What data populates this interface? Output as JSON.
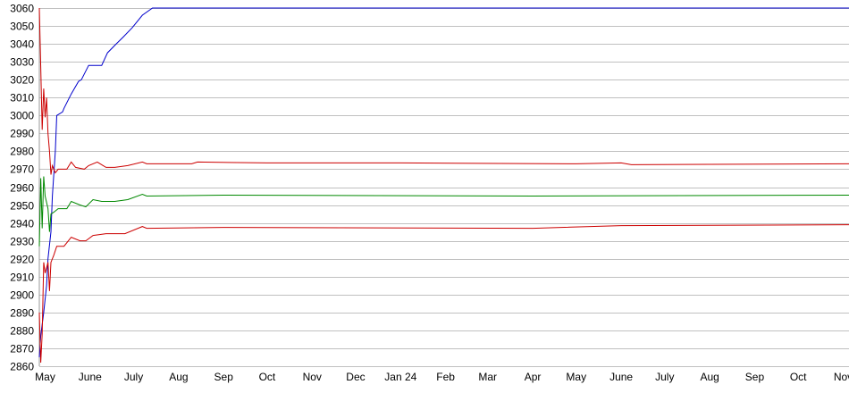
{
  "chart_data": {
    "type": "line",
    "title": "",
    "xlabel": "",
    "ylabel": "",
    "xlim": [
      "2023-04-27",
      "2024-11-05"
    ],
    "ylim": [
      2860,
      3060
    ],
    "yticks": [
      2860,
      2870,
      2880,
      2890,
      2900,
      2910,
      2920,
      2930,
      2940,
      2950,
      2960,
      2970,
      2980,
      2990,
      3000,
      3010,
      3020,
      3030,
      3040,
      3050,
      3060
    ],
    "xticks": [
      {
        "date": "2023-05-01",
        "label": "May"
      },
      {
        "date": "2023-06-01",
        "label": "June"
      },
      {
        "date": "2023-07-01",
        "label": "July"
      },
      {
        "date": "2023-08-01",
        "label": "Aug"
      },
      {
        "date": "2023-09-01",
        "label": "Sep"
      },
      {
        "date": "2023-10-01",
        "label": "Oct"
      },
      {
        "date": "2023-11-01",
        "label": "Nov"
      },
      {
        "date": "2023-12-01",
        "label": "Dec"
      },
      {
        "date": "2024-01-01",
        "label": "Jan 24"
      },
      {
        "date": "2024-02-01",
        "label": "Feb"
      },
      {
        "date": "2024-03-01",
        "label": "Mar"
      },
      {
        "date": "2024-04-01",
        "label": "Apr"
      },
      {
        "date": "2024-05-01",
        "label": "May"
      },
      {
        "date": "2024-06-01",
        "label": "June"
      },
      {
        "date": "2024-07-01",
        "label": "July"
      },
      {
        "date": "2024-08-01",
        "label": "Aug"
      },
      {
        "date": "2024-09-01",
        "label": "Sep"
      },
      {
        "date": "2024-10-01",
        "label": "Oct"
      },
      {
        "date": "2024-11-01",
        "label": "Nov"
      }
    ],
    "grid": true,
    "series": [
      {
        "color": "#0000cc",
        "points": [
          [
            "2023-04-27",
            2865
          ],
          [
            "2023-04-28",
            2877
          ],
          [
            "2023-04-30",
            2890
          ],
          [
            "2023-05-02",
            2905
          ],
          [
            "2023-05-03",
            2920
          ],
          [
            "2023-05-05",
            2935
          ],
          [
            "2023-05-06",
            2955
          ],
          [
            "2023-05-08",
            2980
          ],
          [
            "2023-05-09",
            3000
          ],
          [
            "2023-05-13",
            3002
          ],
          [
            "2023-05-14",
            3004
          ],
          [
            "2023-05-19",
            3012
          ],
          [
            "2023-05-24",
            3019
          ],
          [
            "2023-05-26",
            3020
          ],
          [
            "2023-05-31",
            3028
          ],
          [
            "2023-06-09",
            3028
          ],
          [
            "2023-06-13",
            3035
          ],
          [
            "2023-06-19",
            3040
          ],
          [
            "2023-06-24",
            3044
          ],
          [
            "2023-06-30",
            3049
          ],
          [
            "2023-07-07",
            3056
          ],
          [
            "2023-07-14",
            3060
          ],
          [
            "2024-11-05",
            3060
          ]
        ]
      },
      {
        "color": "#cc0000",
        "points": [
          [
            "2023-04-27",
            3060
          ],
          [
            "2023-04-28",
            3027
          ],
          [
            "2023-04-29",
            2992
          ],
          [
            "2023-04-30",
            3015
          ],
          [
            "2023-05-01",
            2999
          ],
          [
            "2023-05-02",
            3010
          ],
          [
            "2023-05-03",
            2990
          ],
          [
            "2023-05-04",
            2980
          ],
          [
            "2023-05-05",
            2967
          ],
          [
            "2023-05-06",
            2972
          ],
          [
            "2023-05-07",
            2970
          ],
          [
            "2023-05-08",
            2968
          ],
          [
            "2023-05-10",
            2970
          ],
          [
            "2023-05-16",
            2970
          ],
          [
            "2023-05-19",
            2974
          ],
          [
            "2023-05-22",
            2971
          ],
          [
            "2023-05-28",
            2970
          ],
          [
            "2023-05-31",
            2972
          ],
          [
            "2023-06-06",
            2974
          ],
          [
            "2023-06-10",
            2972
          ],
          [
            "2023-06-12",
            2971
          ],
          [
            "2023-06-18",
            2971
          ],
          [
            "2023-06-27",
            2972
          ],
          [
            "2023-07-07",
            2974
          ],
          [
            "2023-07-10",
            2973
          ],
          [
            "2023-08-10",
            2973
          ],
          [
            "2023-08-14",
            2974
          ],
          [
            "2023-10-01",
            2973.5
          ],
          [
            "2024-01-01",
            2973.5
          ],
          [
            "2024-05-01",
            2973
          ],
          [
            "2024-06-01",
            2973.5
          ],
          [
            "2024-06-08",
            2972.5
          ],
          [
            "2024-11-05",
            2973
          ]
        ]
      },
      {
        "color": "#008800",
        "points": [
          [
            "2023-04-27",
            2927
          ],
          [
            "2023-04-28",
            2965
          ],
          [
            "2023-04-29",
            2937
          ],
          [
            "2023-04-30",
            2966
          ],
          [
            "2023-05-01",
            2955
          ],
          [
            "2023-05-03",
            2948
          ],
          [
            "2023-05-04",
            2935
          ],
          [
            "2023-05-05",
            2945
          ],
          [
            "2023-05-07",
            2946
          ],
          [
            "2023-05-10",
            2948
          ],
          [
            "2023-05-16",
            2948
          ],
          [
            "2023-05-19",
            2952
          ],
          [
            "2023-05-25",
            2950
          ],
          [
            "2023-05-29",
            2949
          ],
          [
            "2023-06-03",
            2953
          ],
          [
            "2023-06-09",
            2952
          ],
          [
            "2023-06-18",
            2952
          ],
          [
            "2023-06-27",
            2953
          ],
          [
            "2023-07-07",
            2956
          ],
          [
            "2023-07-10",
            2955
          ],
          [
            "2023-09-01",
            2955.5
          ],
          [
            "2024-04-01",
            2955
          ],
          [
            "2024-11-05",
            2955.5
          ]
        ]
      },
      {
        "color": "#cc0000",
        "points": [
          [
            "2023-04-27",
            2890
          ],
          [
            "2023-04-28",
            2862
          ],
          [
            "2023-04-29",
            2878
          ],
          [
            "2023-04-30",
            2918
          ],
          [
            "2023-05-01",
            2912
          ],
          [
            "2023-05-03",
            2918
          ],
          [
            "2023-05-04",
            2902
          ],
          [
            "2023-05-05",
            2918
          ],
          [
            "2023-05-07",
            2922
          ],
          [
            "2023-05-09",
            2927
          ],
          [
            "2023-05-14",
            2927
          ],
          [
            "2023-05-19",
            2932
          ],
          [
            "2023-05-25",
            2930
          ],
          [
            "2023-05-29",
            2930
          ],
          [
            "2023-06-03",
            2933
          ],
          [
            "2023-06-12",
            2934
          ],
          [
            "2023-06-25",
            2934
          ],
          [
            "2023-07-07",
            2938
          ],
          [
            "2023-07-10",
            2937
          ],
          [
            "2023-09-01",
            2937.5
          ],
          [
            "2024-04-01",
            2937
          ],
          [
            "2024-06-01",
            2938.5
          ],
          [
            "2024-11-05",
            2939
          ]
        ]
      }
    ]
  }
}
